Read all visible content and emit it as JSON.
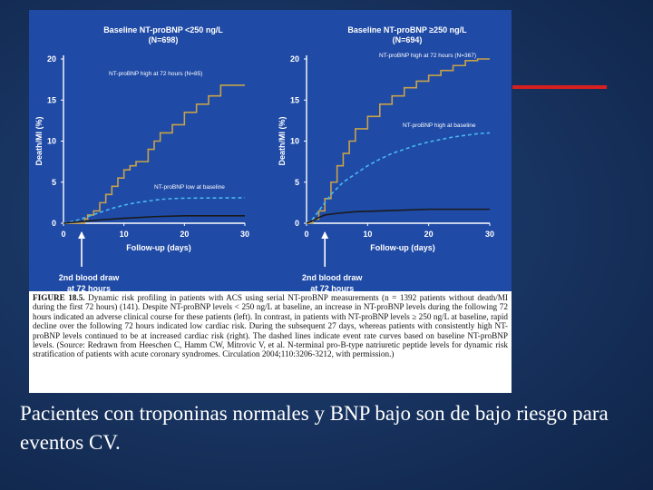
{
  "slide": {
    "background_color": "#17325e",
    "accent_line_color": "#d62020",
    "body_text": "Pacientes con troponinas normales y BNP bajo son de bajo riesgo para eventos CV."
  },
  "figure": {
    "caption_label": "FIGURE 18.5.",
    "caption_text": "Dynamic risk profiling in patients with ACS using serial NT-proBNP measurements (n = 1392 patients without death/MI during the first 72 hours) (141). Despite NT-proBNP levels < 250 ng/L at baseline, an increase in NT-proBNP levels during the following 72 hours indicated an adverse clinical course for these patients (left). In contrast, in patients with NT-proBNP levels ≥ 250 ng/L at baseline, rapid decline over the following 72 hours indicated low cardiac risk. During the subsequent 27 days, whereas patients with consistently high NT-proBNP levels continued to be at increased cardiac risk (right). The dashed lines indicate event rate curves based on baseline NT-proBNP levels. (Source: Redrawn from Heeschen C, Hamm CW, Mitrovic V, et al. N-terminal pro-B-type natriuretic peptide levels for dynamic risk stratification of patients with acute coronary syndromes. Circulation 2004;110:3206-3212, with permission.)"
  },
  "chart_data": [
    {
      "type": "line",
      "title": "Baseline NT-proBNP <250 ng/L",
      "subtitle": "(N=698)",
      "xlabel": "Follow-up (days)",
      "ylabel": "Death/MI (%)",
      "xlim": [
        0,
        30
      ],
      "ylim": [
        0,
        20
      ],
      "xticks": [
        0,
        10,
        20,
        30
      ],
      "yticks": [
        0,
        5,
        10,
        15,
        20
      ],
      "marker_label": "2nd blood draw at 72 hours",
      "marker_x": 3,
      "series": [
        {
          "name": "NT-proBNP high at 72 hours (N=85)",
          "style": "solid",
          "color": "#c8a24a",
          "x": [
            0,
            2,
            3,
            3.5,
            4,
            5,
            6,
            7,
            8,
            9,
            10,
            11,
            12,
            14,
            15,
            16,
            18,
            20,
            22,
            24,
            26,
            30
          ],
          "y": [
            0,
            0,
            0,
            0.5,
            1,
            1.5,
            2.5,
            3.5,
            4.5,
            5.5,
            6.5,
            7,
            7.5,
            9,
            10,
            11,
            12,
            13.5,
            14.5,
            15.5,
            16.8,
            16.8
          ]
        },
        {
          "name": "NT-proBNP low at baseline",
          "style": "dashed",
          "color": "#49b8f0",
          "x": [
            0,
            2,
            4,
            6,
            8,
            10,
            12,
            14,
            16,
            18,
            20,
            30
          ],
          "y": [
            0,
            0.3,
            0.8,
            1.3,
            1.8,
            2.2,
            2.5,
            2.7,
            2.9,
            3,
            3.05,
            3.1
          ]
        },
        {
          "name": "",
          "style": "solid",
          "color": "#1a1a1a",
          "x": [
            0,
            3,
            6,
            10,
            15,
            20,
            30
          ],
          "y": [
            0,
            0.2,
            0.4,
            0.6,
            0.8,
            0.9,
            0.9
          ]
        }
      ]
    },
    {
      "type": "line",
      "title": "Baseline NT-proBNP ≥250 ng/L",
      "subtitle": "(N=694)",
      "xlabel": "Follow-up (days)",
      "ylabel": "Death/MI (%)",
      "xlim": [
        0,
        30
      ],
      "ylim": [
        0,
        20
      ],
      "xticks": [
        0,
        10,
        20,
        30
      ],
      "yticks": [
        0,
        5,
        10,
        15,
        20
      ],
      "marker_label": "2nd blood draw at 72 hours",
      "marker_x": 3,
      "series": [
        {
          "name": "NT-proBNP high at 72 hours (N=367)",
          "style": "solid",
          "color": "#c8a24a",
          "x": [
            0,
            1,
            2,
            3,
            4,
            5,
            6,
            7,
            8,
            10,
            12,
            14,
            16,
            18,
            20,
            22,
            24,
            26,
            28,
            30
          ],
          "y": [
            0,
            0.5,
            1.5,
            3,
            5,
            7,
            8.5,
            10,
            11.5,
            13,
            14.5,
            15.5,
            16.5,
            17.3,
            18,
            18.6,
            19.2,
            19.8,
            20,
            20
          ]
        },
        {
          "name": "NT-proBNP high at baseline",
          "style": "dashed",
          "color": "#49b8f0",
          "x": [
            0,
            1,
            2,
            3,
            4,
            6,
            8,
            10,
            12,
            14,
            16,
            18,
            20,
            22,
            24,
            26,
            28,
            30
          ],
          "y": [
            0,
            0.5,
            1.5,
            2.5,
            3.5,
            5,
            6,
            7,
            7.8,
            8.5,
            9,
            9.5,
            9.9,
            10.2,
            10.5,
            10.7,
            10.9,
            11
          ]
        },
        {
          "name": "",
          "style": "solid",
          "color": "#1a1a1a",
          "x": [
            0,
            1,
            2,
            3,
            5,
            8,
            12,
            16,
            20,
            25,
            30
          ],
          "y": [
            0,
            0.3,
            0.7,
            1,
            1.2,
            1.4,
            1.5,
            1.6,
            1.7,
            1.7,
            1.7
          ]
        }
      ]
    }
  ]
}
